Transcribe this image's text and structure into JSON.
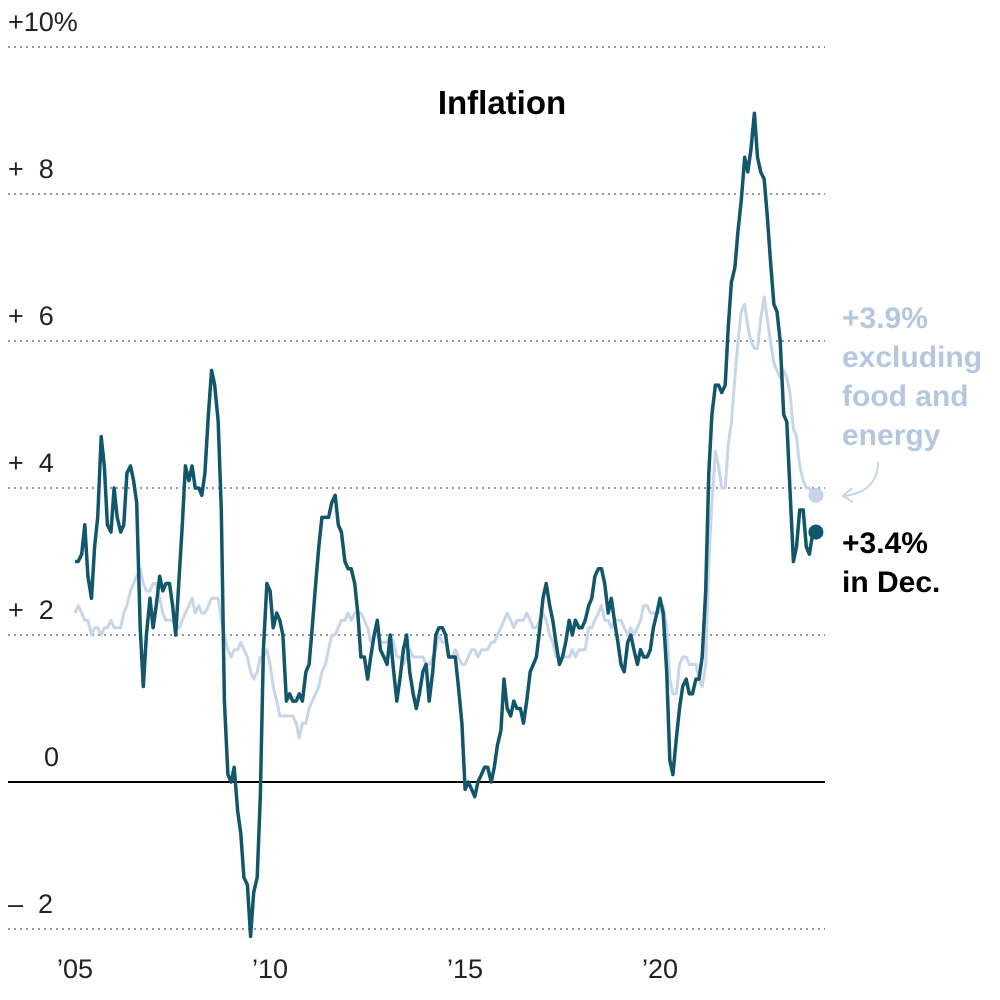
{
  "chart_data": {
    "type": "line",
    "title": "Inflation",
    "x": [
      2005.0,
      2005.08,
      2005.17,
      2005.25,
      2005.33,
      2005.42,
      2005.5,
      2005.58,
      2005.67,
      2005.75,
      2005.83,
      2005.92,
      2006.0,
      2006.08,
      2006.17,
      2006.25,
      2006.33,
      2006.42,
      2006.5,
      2006.58,
      2006.67,
      2006.75,
      2006.83,
      2006.92,
      2007.0,
      2007.08,
      2007.17,
      2007.25,
      2007.33,
      2007.42,
      2007.5,
      2007.58,
      2007.67,
      2007.75,
      2007.83,
      2007.92,
      2008.0,
      2008.08,
      2008.17,
      2008.25,
      2008.33,
      2008.42,
      2008.5,
      2008.58,
      2008.67,
      2008.75,
      2008.83,
      2008.92,
      2009.0,
      2009.08,
      2009.17,
      2009.25,
      2009.33,
      2009.42,
      2009.5,
      2009.58,
      2009.67,
      2009.75,
      2009.83,
      2009.92,
      2010.0,
      2010.08,
      2010.17,
      2010.25,
      2010.33,
      2010.42,
      2010.5,
      2010.58,
      2010.67,
      2010.75,
      2010.83,
      2010.92,
      2011.0,
      2011.08,
      2011.17,
      2011.25,
      2011.33,
      2011.42,
      2011.5,
      2011.58,
      2011.67,
      2011.75,
      2011.83,
      2011.92,
      2012.0,
      2012.08,
      2012.17,
      2012.25,
      2012.33,
      2012.42,
      2012.5,
      2012.58,
      2012.67,
      2012.75,
      2012.83,
      2012.92,
      2013.0,
      2013.08,
      2013.17,
      2013.25,
      2013.33,
      2013.42,
      2013.5,
      2013.58,
      2013.67,
      2013.75,
      2013.83,
      2013.92,
      2014.0,
      2014.08,
      2014.17,
      2014.25,
      2014.33,
      2014.42,
      2014.5,
      2014.58,
      2014.67,
      2014.75,
      2014.83,
      2014.92,
      2015.0,
      2015.08,
      2015.17,
      2015.25,
      2015.33,
      2015.42,
      2015.5,
      2015.58,
      2015.67,
      2015.75,
      2015.83,
      2015.92,
      2016.0,
      2016.08,
      2016.17,
      2016.25,
      2016.33,
      2016.42,
      2016.5,
      2016.58,
      2016.67,
      2016.75,
      2016.83,
      2016.92,
      2017.0,
      2017.08,
      2017.17,
      2017.25,
      2017.33,
      2017.42,
      2017.5,
      2017.58,
      2017.67,
      2017.75,
      2017.83,
      2017.92,
      2018.0,
      2018.08,
      2018.17,
      2018.25,
      2018.33,
      2018.42,
      2018.5,
      2018.58,
      2018.67,
      2018.75,
      2018.83,
      2018.92,
      2019.0,
      2019.08,
      2019.17,
      2019.25,
      2019.33,
      2019.42,
      2019.5,
      2019.58,
      2019.67,
      2019.75,
      2019.83,
      2019.92,
      2020.0,
      2020.08,
      2020.17,
      2020.25,
      2020.33,
      2020.42,
      2020.5,
      2020.58,
      2020.67,
      2020.75,
      2020.83,
      2020.92,
      2021.0,
      2021.08,
      2021.17,
      2021.25,
      2021.33,
      2021.42,
      2021.5,
      2021.58,
      2021.67,
      2021.75,
      2021.83,
      2021.92,
      2022.0,
      2022.08,
      2022.17,
      2022.25,
      2022.33,
      2022.42,
      2022.5,
      2022.58,
      2022.67,
      2022.75,
      2022.83,
      2022.92,
      2023.0,
      2023.08,
      2023.17,
      2023.25,
      2023.33,
      2023.42,
      2023.5,
      2023.58,
      2023.67,
      2023.75,
      2023.83,
      2023.92
    ],
    "series": [
      {
        "color": "#c8d5e8",
        "values": [
          2.3,
          2.4,
          2.3,
          2.2,
          2.2,
          2.0,
          2.1,
          2.1,
          2.0,
          2.1,
          2.1,
          2.2,
          2.1,
          2.1,
          2.1,
          2.3,
          2.4,
          2.6,
          2.7,
          2.8,
          2.9,
          2.7,
          2.6,
          2.6,
          2.7,
          2.7,
          2.5,
          2.3,
          2.2,
          2.2,
          2.2,
          2.1,
          2.1,
          2.2,
          2.3,
          2.4,
          2.5,
          2.3,
          2.4,
          2.3,
          2.3,
          2.4,
          2.5,
          2.5,
          2.5,
          2.2,
          2.0,
          1.8,
          1.7,
          1.8,
          1.8,
          1.9,
          1.8,
          1.7,
          1.5,
          1.4,
          1.5,
          1.7,
          1.7,
          1.8,
          1.6,
          1.3,
          1.1,
          0.9,
          0.9,
          0.9,
          0.9,
          0.9,
          0.8,
          0.6,
          0.8,
          0.8,
          1.0,
          1.1,
          1.2,
          1.3,
          1.5,
          1.6,
          1.8,
          2.0,
          2.0,
          2.1,
          2.2,
          2.2,
          2.3,
          2.2,
          2.3,
          2.3,
          2.3,
          2.2,
          2.1,
          1.9,
          2.0,
          2.0,
          1.9,
          1.9,
          1.9,
          2.0,
          1.9,
          1.7,
          1.7,
          1.6,
          1.7,
          1.8,
          1.7,
          1.7,
          1.7,
          1.7,
          1.6,
          1.6,
          1.7,
          1.8,
          2.0,
          1.9,
          1.9,
          1.7,
          1.7,
          1.8,
          1.7,
          1.6,
          1.6,
          1.7,
          1.8,
          1.8,
          1.7,
          1.8,
          1.8,
          1.8,
          1.9,
          1.9,
          2.0,
          2.1,
          2.2,
          2.3,
          2.2,
          2.1,
          2.2,
          2.2,
          2.2,
          2.3,
          2.2,
          2.1,
          2.1,
          2.2,
          2.3,
          2.2,
          2.0,
          1.9,
          1.7,
          1.7,
          1.7,
          1.7,
          1.7,
          1.8,
          1.7,
          1.8,
          1.8,
          1.8,
          2.1,
          2.1,
          2.2,
          2.3,
          2.4,
          2.2,
          2.2,
          2.1,
          2.2,
          2.2,
          2.2,
          2.1,
          2.0,
          2.1,
          2.0,
          2.1,
          2.2,
          2.4,
          2.4,
          2.3,
          2.3,
          2.3,
          2.3,
          2.4,
          2.1,
          1.4,
          1.2,
          1.2,
          1.6,
          1.7,
          1.7,
          1.6,
          1.6,
          1.6,
          1.4,
          1.3,
          1.6,
          3.0,
          3.8,
          4.5,
          4.3,
          4.0,
          4.0,
          4.6,
          4.9,
          5.5,
          6.0,
          6.4,
          6.5,
          6.2,
          6.0,
          5.9,
          5.9,
          6.3,
          6.6,
          6.3,
          6.0,
          5.7,
          5.6,
          5.5,
          5.6,
          5.5,
          5.3,
          4.8,
          4.7,
          4.3,
          4.1,
          4.0,
          4.0,
          3.9
        ]
      },
      {
        "color": "#11566a",
        "values": [
          3.0,
          3.0,
          3.1,
          3.5,
          2.8,
          2.5,
          3.2,
          3.6,
          4.7,
          4.3,
          3.5,
          3.4,
          4.0,
          3.6,
          3.4,
          3.5,
          4.2,
          4.3,
          4.1,
          3.8,
          2.1,
          1.3,
          2.0,
          2.5,
          2.1,
          2.4,
          2.8,
          2.6,
          2.7,
          2.7,
          2.4,
          2.0,
          2.8,
          3.5,
          4.3,
          4.1,
          4.3,
          4.0,
          4.0,
          3.9,
          4.2,
          5.0,
          5.6,
          5.4,
          4.9,
          3.7,
          1.1,
          0.1,
          0.0,
          0.2,
          -0.4,
          -0.7,
          -1.3,
          -1.4,
          -2.1,
          -1.5,
          -1.3,
          -0.2,
          1.8,
          2.7,
          2.6,
          2.1,
          2.3,
          2.2,
          2.0,
          1.1,
          1.2,
          1.1,
          1.1,
          1.2,
          1.1,
          1.5,
          1.6,
          2.1,
          2.7,
          3.2,
          3.6,
          3.6,
          3.6,
          3.8,
          3.9,
          3.5,
          3.4,
          3.0,
          2.9,
          2.9,
          2.7,
          2.3,
          1.7,
          1.7,
          1.4,
          1.7,
          2.0,
          2.2,
          1.8,
          1.7,
          1.6,
          2.0,
          1.5,
          1.1,
          1.4,
          1.8,
          2.0,
          1.5,
          1.2,
          1.0,
          1.2,
          1.5,
          1.6,
          1.1,
          1.5,
          2.0,
          2.1,
          2.1,
          2.0,
          1.7,
          1.7,
          1.7,
          1.3,
          0.8,
          -0.1,
          0.0,
          -0.1,
          -0.2,
          0.0,
          0.1,
          0.2,
          0.2,
          0.0,
          0.2,
          0.5,
          0.7,
          1.4,
          1.0,
          0.9,
          1.1,
          1.0,
          1.0,
          0.8,
          1.1,
          1.5,
          1.6,
          1.7,
          2.1,
          2.5,
          2.7,
          2.4,
          2.2,
          1.9,
          1.6,
          1.7,
          1.9,
          2.2,
          2.0,
          2.2,
          2.1,
          2.1,
          2.2,
          2.4,
          2.5,
          2.8,
          2.9,
          2.9,
          2.7,
          2.3,
          2.5,
          2.2,
          1.9,
          1.6,
          1.5,
          1.9,
          2.0,
          1.8,
          1.6,
          1.8,
          1.7,
          1.7,
          1.8,
          2.1,
          2.3,
          2.5,
          2.3,
          1.5,
          0.3,
          0.1,
          0.6,
          1.0,
          1.3,
          1.4,
          1.2,
          1.2,
          1.4,
          1.4,
          1.7,
          2.6,
          4.2,
          5.0,
          5.4,
          5.4,
          5.3,
          5.4,
          6.2,
          6.8,
          7.0,
          7.5,
          7.9,
          8.5,
          8.3,
          8.6,
          9.1,
          8.5,
          8.3,
          8.2,
          7.7,
          7.1,
          6.5,
          6.4,
          6.0,
          5.0,
          4.9,
          4.0,
          3.0,
          3.2,
          3.7,
          3.7,
          3.2,
          3.1,
          3.4
        ]
      }
    ],
    "annotations": [
      {
        "lines": [
          "+3.9%",
          "excluding",
          "food and",
          "energy"
        ]
      },
      {
        "lines": [
          "+3.4%",
          "in Dec."
        ]
      }
    ],
    "xlim": [
      2003.28,
      2024.23
    ],
    "ylim": [
      -2,
      10
    ],
    "xticks": [
      {
        "value": 2005,
        "label": "’05"
      },
      {
        "value": 2010,
        "label": "’10"
      },
      {
        "value": 2015,
        "label": "’15"
      },
      {
        "value": 2020,
        "label": "’20"
      }
    ],
    "yticks": [
      {
        "value": -2,
        "label": "–  2"
      },
      0,
      {
        "value": 2,
        "label": "+  2"
      },
      {
        "value": 4,
        "label": "+  4"
      },
      {
        "value": 6,
        "label": "+  6"
      },
      {
        "value": 8,
        "label": "+  8"
      },
      {
        "value": 10,
        "label": "+10%"
      }
    ],
    "grid": true
  }
}
